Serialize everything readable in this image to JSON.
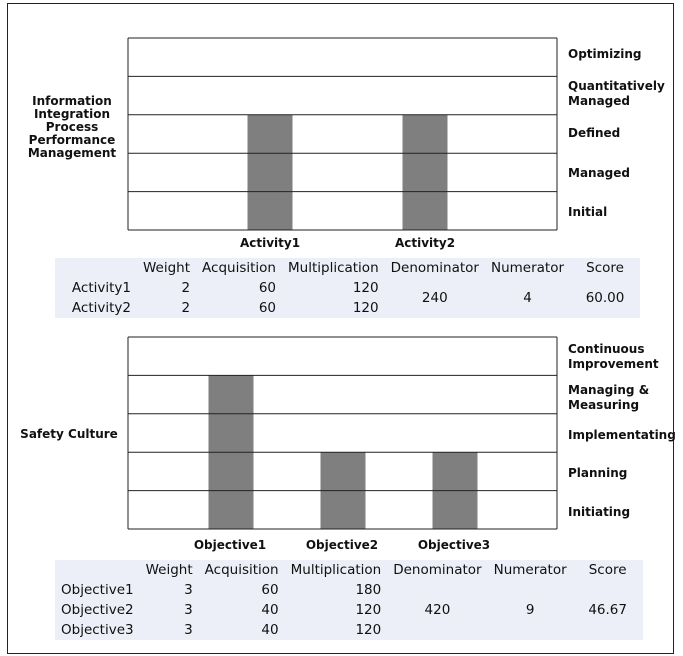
{
  "charts": [
    {
      "title": "Information Integration Process Performance Management",
      "levels": [
        "Initial",
        "Managed",
        "Defined",
        "Quantitatively Managed",
        "Optimizing"
      ],
      "bars": [
        {
          "name": "Activity1",
          "level": 3
        },
        {
          "name": "Activity2",
          "level": 3
        }
      ],
      "table": {
        "headers": [
          "",
          "Weight",
          "Acquisition",
          "Multiplication",
          "Denominator",
          "Numerator",
          "Score"
        ],
        "rows": [
          {
            "label": "Activity1",
            "weight": "2",
            "acquisition": "60",
            "multiplication": "120"
          },
          {
            "label": "Activity2",
            "weight": "2",
            "acquisition": "60",
            "multiplication": "120"
          }
        ],
        "denominator": "240",
        "numerator": "4",
        "score": "60.00"
      }
    },
    {
      "title": "Safety Culture",
      "levels": [
        "Initiating",
        "Planning",
        "Implementating",
        "Managing & Measuring",
        "Continuous Improvement"
      ],
      "bars": [
        {
          "name": "Objective1",
          "level": 4
        },
        {
          "name": "Objective2",
          "level": 2
        },
        {
          "name": "Objective3",
          "level": 2
        }
      ],
      "table": {
        "headers": [
          "",
          "Weight",
          "Acquisition",
          "Multiplication",
          "Denominator",
          "Numerator",
          "Score"
        ],
        "rows": [
          {
            "label": "Objective1",
            "weight": "3",
            "acquisition": "60",
            "multiplication": "180"
          },
          {
            "label": "Objective2",
            "weight": "3",
            "acquisition": "40",
            "multiplication": "120"
          },
          {
            "label": "Objective3",
            "weight": "3",
            "acquisition": "40",
            "multiplication": "120"
          }
        ],
        "denominator": "420",
        "numerator": "9",
        "score": "46.67"
      }
    }
  ],
  "chart_data": [
    {
      "type": "bar",
      "title": "Information Integration Process Performance Management",
      "categories": [
        "Activity1",
        "Activity2"
      ],
      "values": [
        3,
        3
      ],
      "y_tick_labels": [
        "Initial",
        "Managed",
        "Defined",
        "Quantitatively Managed",
        "Optimizing"
      ],
      "ylim": [
        0,
        5
      ],
      "grid": true
    },
    {
      "type": "bar",
      "title": "Safety Culture",
      "categories": [
        "Objective1",
        "Objective2",
        "Objective3"
      ],
      "values": [
        4,
        2,
        2
      ],
      "y_tick_labels": [
        "Initiating",
        "Planning",
        "Implementating",
        "Managing & Measuring",
        "Continuous Improvement"
      ],
      "ylim": [
        0,
        5
      ],
      "grid": true
    },
    {
      "type": "table",
      "columns": [
        "",
        "Weight",
        "Acquisition",
        "Multiplication",
        "Denominator",
        "Numerator",
        "Score"
      ],
      "rows": [
        [
          "Activity1",
          2,
          60,
          120,
          240,
          4,
          60.0
        ],
        [
          "Activity2",
          2,
          60,
          120,
          240,
          4,
          60.0
        ]
      ]
    },
    {
      "type": "table",
      "columns": [
        "",
        "Weight",
        "Acquisition",
        "Multiplication",
        "Denominator",
        "Numerator",
        "Score"
      ],
      "rows": [
        [
          "Objective1",
          3,
          60,
          180,
          420,
          9,
          46.67
        ],
        [
          "Objective2",
          3,
          40,
          120,
          420,
          9,
          46.67
        ],
        [
          "Objective3",
          3,
          40,
          120,
          420,
          9,
          46.67
        ]
      ]
    }
  ],
  "colors": {
    "bar": "#7f7f7f",
    "grid": "#222222",
    "table_bg": "#eceff7"
  }
}
